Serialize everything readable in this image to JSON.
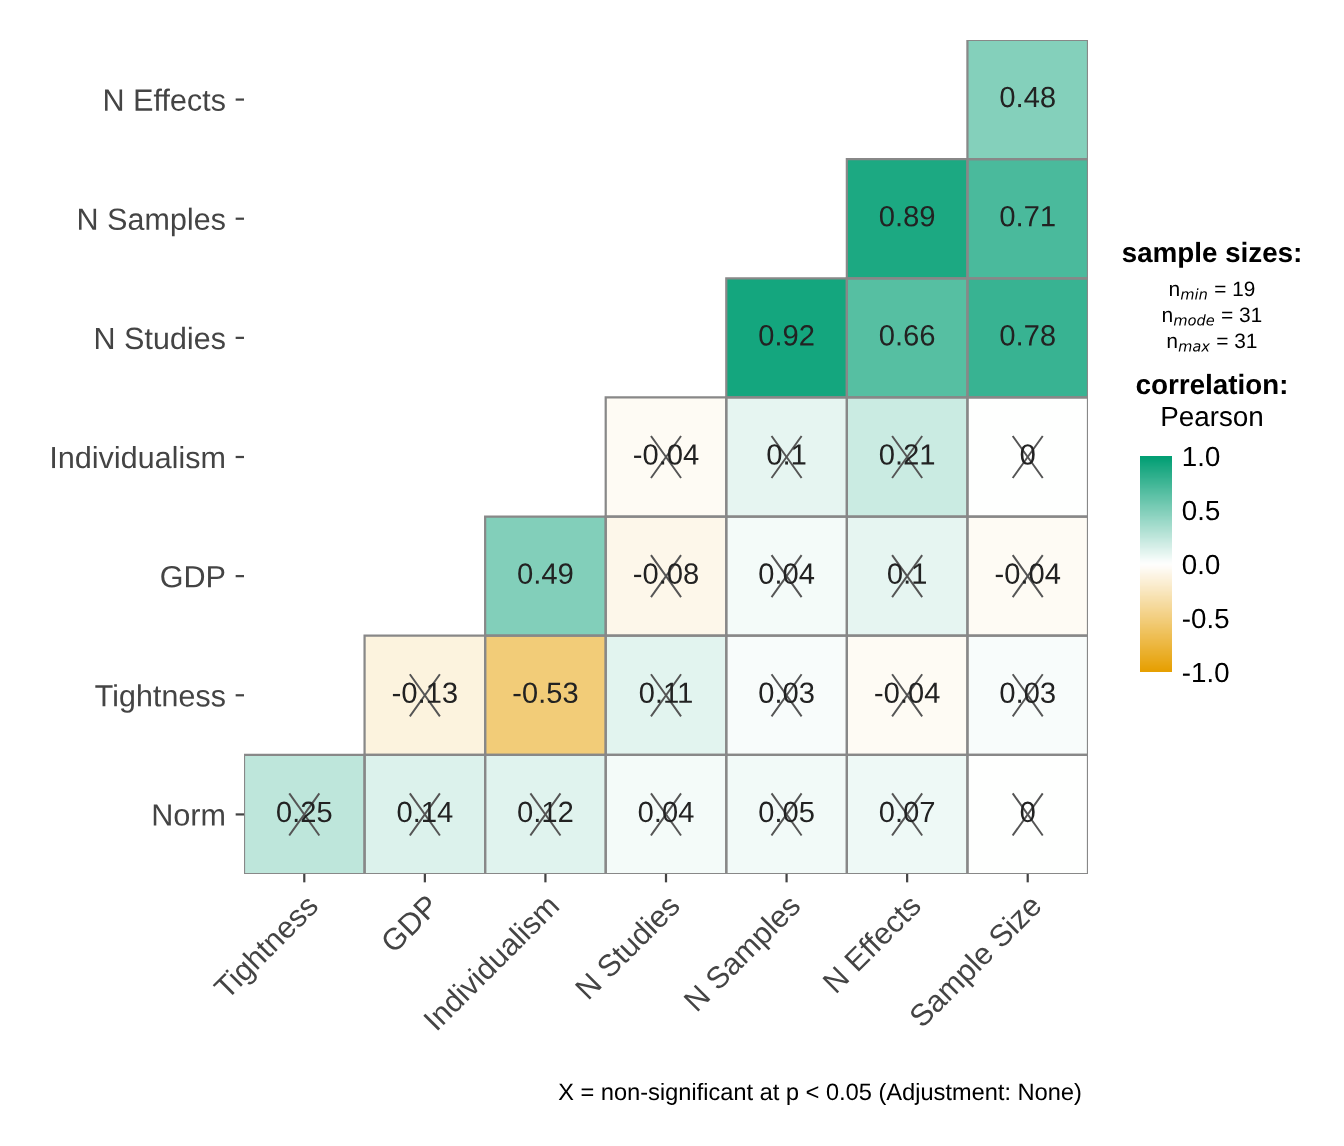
{
  "chart_data": {
    "type": "heatmap",
    "categories": [
      "Tightness",
      "GDP",
      "Individualism",
      "N Studies",
      "N Samples",
      "N Effects",
      "Sample Size"
    ],
    "y_categories": [
      "N Effects",
      "N Samples",
      "N Studies",
      "Individualism",
      "GDP",
      "Tightness",
      "Norm"
    ],
    "cells": [
      [
        null,
        null,
        null,
        null,
        null,
        null,
        0.48
      ],
      [
        null,
        null,
        null,
        null,
        null,
        0.89,
        0.71
      ],
      [
        null,
        null,
        null,
        null,
        0.92,
        0.66,
        0.78
      ],
      [
        null,
        null,
        null,
        -0.04,
        0.1,
        0.21,
        0
      ],
      [
        null,
        null,
        0.49,
        -0.08,
        0.04,
        0.1,
        -0.04
      ],
      [
        null,
        -0.13,
        -0.53,
        0.11,
        0.03,
        -0.04,
        0.03
      ],
      [
        0.25,
        0.14,
        0.12,
        0.04,
        0.05,
        0.07,
        0
      ]
    ],
    "data_labels": true,
    "legend_title": "correlation:",
    "clabel": "Pearson",
    "clim": [
      -1,
      1
    ],
    "cticks": [
      {
        "value": 1,
        "label": "1.0"
      },
      {
        "value": 0.5,
        "label": "0.5"
      },
      {
        "value": 0,
        "label": "0.0"
      },
      {
        "value": -0.5,
        "label": "-0.5"
      },
      {
        "value": -1,
        "label": "-1.0"
      }
    ],
    "annotations": [
      "sample sizes:",
      "n$_{min}$ = 19",
      "n$_{mode}$ = 31",
      "n$_{max}$ = 31",
      "X = non-significant at p < 0.05 (Adjustment: None)"
    ]
  }
}
